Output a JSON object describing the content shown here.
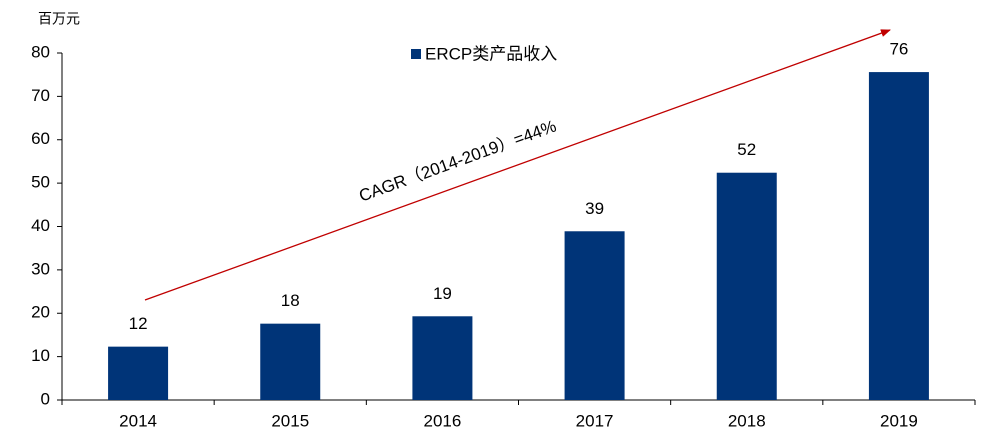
{
  "chart_data": {
    "type": "bar",
    "unit_label": "百万元",
    "annotation": "CAGR（2014-2019）=44%",
    "categories": [
      "2014",
      "2015",
      "2016",
      "2017",
      "2018",
      "2019"
    ],
    "series": [
      {
        "name": "ERCP类产品收入",
        "color": "#003478",
        "values": [
          12.3,
          17.6,
          19.3,
          38.9,
          52.4,
          75.6
        ],
        "value_labels": [
          "12",
          "18",
          "19",
          "39",
          "52",
          "76"
        ]
      }
    ],
    "ylim": [
      0,
      80
    ],
    "yticks": [
      0,
      10,
      20,
      30,
      40,
      50,
      60,
      70,
      80
    ],
    "arrow_color": "#c00000",
    "legend": "top"
  }
}
